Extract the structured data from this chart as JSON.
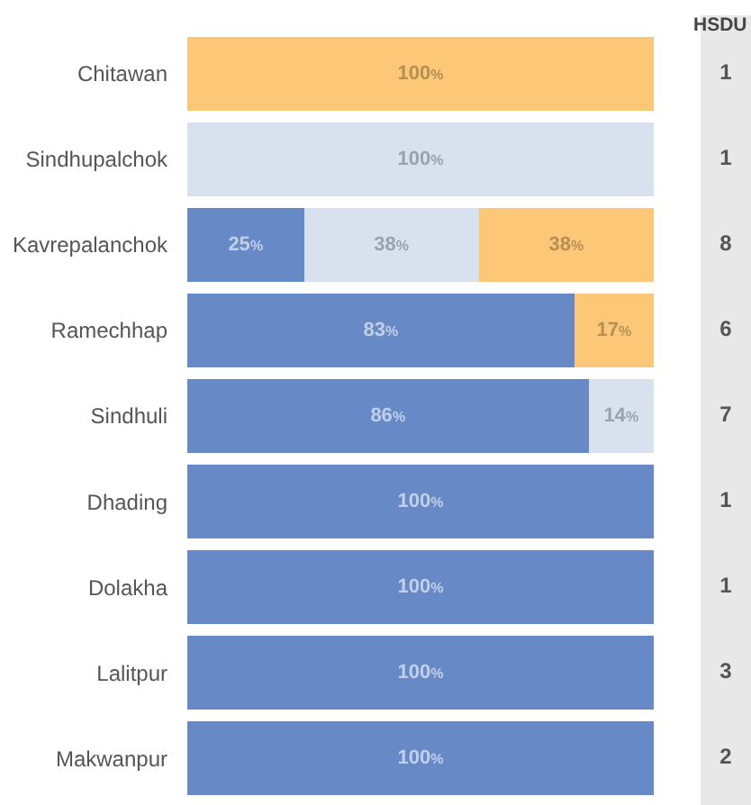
{
  "chart_data": [
    {
      "type": "bar",
      "orientation": "horizontal",
      "stacked": true,
      "categories": [
        "Chitawan",
        "Sindhupalchok",
        "Kavrepalanchok",
        "Ramechhap",
        "Sindhuli",
        "Dhading",
        "Dolakha",
        "Lalitpur",
        "Makwanpur"
      ],
      "xlim": [
        0,
        100
      ],
      "tick_labels": "y",
      "series": [
        {
          "color": "#6789c6",
          "values": [
            null,
            null,
            25,
            83,
            86,
            100,
            100,
            100,
            100
          ],
          "value_labels": [
            null,
            null,
            "25%",
            "83%",
            "86%",
            "100%",
            "100%",
            "100%",
            "100%"
          ]
        },
        {
          "color": "#d8e2ee",
          "values": [
            null,
            100,
            37.5,
            null,
            14,
            null,
            null,
            null,
            null
          ],
          "value_labels": [
            null,
            "100%",
            "38%",
            null,
            "14%",
            null,
            null,
            null,
            null
          ]
        },
        {
          "color": "#fcc877",
          "values": [
            100,
            null,
            37.5,
            17,
            null,
            null,
            null,
            null,
            null
          ],
          "value_labels": [
            "100%",
            null,
            "38%",
            "17%",
            null,
            null,
            null,
            null,
            null
          ]
        }
      ]
    },
    {
      "type": "other",
      "title": "HSDU",
      "values": [
        1,
        1,
        8,
        6,
        7,
        1,
        1,
        3,
        2
      ],
      "data_labels": true,
      "color": "#e8e8e8"
    }
  ]
}
